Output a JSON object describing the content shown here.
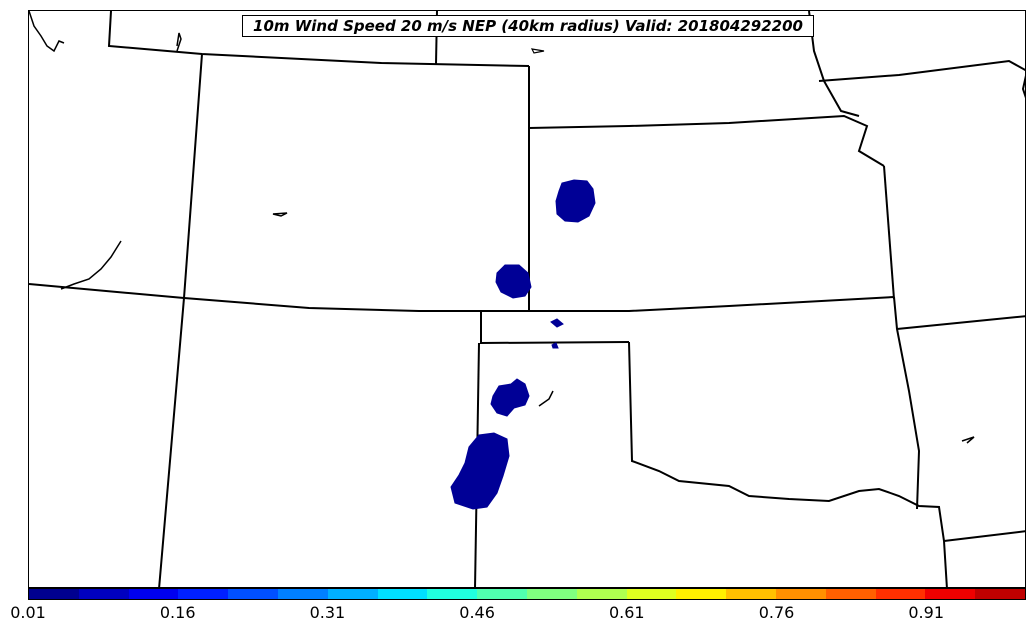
{
  "title": "10m Wind Speed 20 m/s NEP (40km radius) Valid: 201804292200",
  "colorbar": {
    "tick_labels": [
      "0.01",
      "0.16",
      "0.31",
      "0.46",
      "0.61",
      "0.76",
      "0.91"
    ],
    "colors": [
      "#00008f",
      "#0000bf",
      "#0000ef",
      "#0020ff",
      "#0050ff",
      "#0080ff",
      "#00b0ff",
      "#00e0ff",
      "#20ffdf",
      "#50ffaf",
      "#80ff80",
      "#afff50",
      "#dfff20",
      "#fff000",
      "#ffc000",
      "#ff9000",
      "#ff6000",
      "#ff3000",
      "#ef0000",
      "#bf0000"
    ]
  },
  "map": {
    "boundary_color": "#000000",
    "probability_fill_color": "#000096"
  }
}
